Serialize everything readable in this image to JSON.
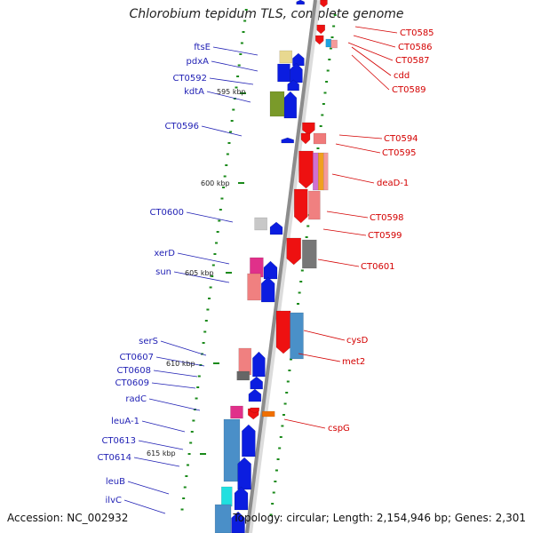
{
  "title": "Chlorobium tepidum TLS, complete genome",
  "footer": {
    "accession": "Accession: NC_002932",
    "topology": "Topology: circular; Length: 2,154,946 bp; Genes: 2,301"
  },
  "scale": [
    "595 kbp",
    "600 kbp",
    "605 kbp",
    "610 kbp",
    "615 kbp"
  ],
  "genes_left": [
    "ftsE",
    "pdxA",
    "CT0592",
    "kdtA",
    "CT0596",
    "CT0600",
    "xerD",
    "sun",
    "serS",
    "CT0607",
    "CT0608",
    "CT0609",
    "radC",
    "leuA-1",
    "CT0613",
    "CT0614",
    "leuB",
    "ilvC"
  ],
  "genes_right": [
    "CT0585",
    "CT0586",
    "CT0587",
    "cdd",
    "CT0589",
    "CT0594",
    "CT0595",
    "deaD-1",
    "CT0598",
    "CT0599",
    "CT0601",
    "cysD",
    "met2",
    "cspG"
  ],
  "colors": {
    "forward": "#0b1de0",
    "reverse": "#ee1111",
    "label_left": "#1f1fb4",
    "label_right": "#d40000",
    "backbone": "#8c8c8c",
    "tick": "#1a8a1a"
  }
}
